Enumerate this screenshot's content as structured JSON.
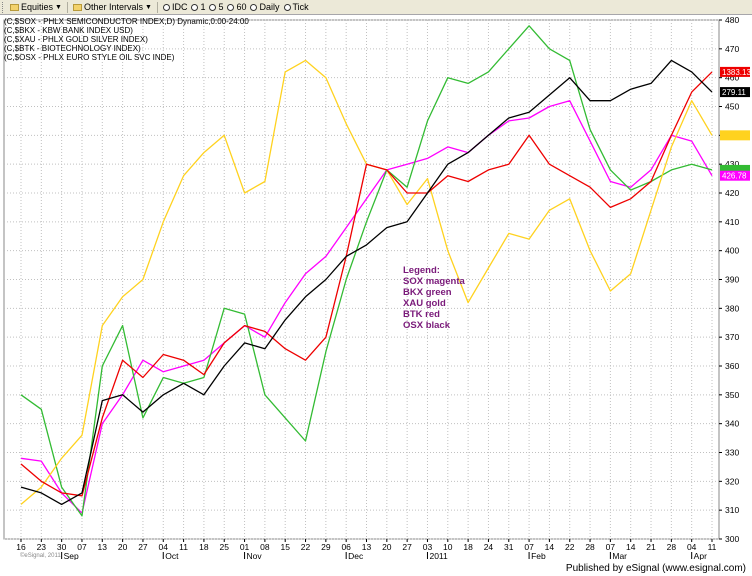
{
  "toolbar": {
    "items": [
      {
        "label": "Equities",
        "icon": "folder-icon"
      },
      {
        "label": "Other Intervals",
        "icon": "folder-icon"
      },
      {
        "label": "IDC",
        "icon": "clock-icon"
      },
      {
        "label": "1",
        "icon": "clock-icon"
      },
      {
        "label": "5",
        "icon": "clock-icon"
      },
      {
        "label": "60",
        "icon": "clock-icon"
      },
      {
        "label": "Daily",
        "icon": "clock-icon"
      },
      {
        "label": "Tick",
        "icon": "clock-icon"
      }
    ]
  },
  "header": {
    "lines": [
      "(C,$SOX - PHLX SEMICONDUCTOR INDEX,D) Dynamic,0:00-24:00",
      "(C,$BKX - KBW BANK INDEX USD)",
      "(C,$XAU - PHLX GOLD SILVER INDEX)",
      "(C,$BTK - BIOTECHNOLOGY INDEX)",
      "(C,$OSX - PHLX EURO STYLE OIL SVC INDE)"
    ]
  },
  "legend": {
    "title": "Legend:",
    "entries": [
      "SOX magenta",
      "BKX green",
      "XAU gold",
      "BTK red",
      "OSX black"
    ]
  },
  "watermark": "©eSignal, 2011",
  "footer": {
    "text": "Published by eSignal (www.esignal.com)"
  },
  "colors": {
    "background": "#ffffff",
    "grid": "#c0c0c0",
    "sox": "#ff00ff",
    "bkx": "#33bb33",
    "xau": "#ffd21f",
    "btk": "#ee0000",
    "osx": "#000000",
    "legend_text": "#7a1a7a"
  },
  "chart_data": {
    "type": "line",
    "grid": true,
    "y_axis": {
      "position": "right",
      "ylim": [
        300,
        480
      ],
      "ticks": [
        300,
        310,
        320,
        330,
        340,
        350,
        360,
        370,
        380,
        390,
        400,
        410,
        420,
        430,
        440,
        450,
        460,
        470,
        480
      ]
    },
    "x_axis": {
      "day_labels": [
        "16",
        "23",
        "30",
        "07",
        "13",
        "20",
        "27",
        "04",
        "11",
        "18",
        "25",
        "01",
        "08",
        "15",
        "22",
        "29",
        "06",
        "13",
        "20",
        "27",
        "03",
        "10",
        "18",
        "24",
        "31",
        "07",
        "14",
        "22",
        "28",
        "07",
        "14",
        "21",
        "28",
        "04",
        "11"
      ],
      "month_labels": [
        {
          "label": "Sep",
          "at_day_index": 2
        },
        {
          "label": "Oct",
          "at_day_index": 7
        },
        {
          "label": "Nov",
          "at_day_index": 11
        },
        {
          "label": "Dec",
          "at_day_index": 16
        },
        {
          "label": "2011",
          "at_day_index": 20
        },
        {
          "label": "Feb",
          "at_day_index": 25
        },
        {
          "label": "Mar",
          "at_day_index": 29
        },
        {
          "label": "Apr",
          "at_day_index": 33
        }
      ]
    },
    "last_value_labels": [
      {
        "series": "BTK",
        "value": "1383.13",
        "color": "#ee0000",
        "text_color": "#ffffff"
      },
      {
        "series": "OSX",
        "value": "279.11",
        "color": "#000000",
        "text_color": "#ffffff"
      },
      {
        "series": "XAU",
        "value": "",
        "color": "#ffd21f",
        "text_color": "#000000"
      },
      {
        "series": "BKX",
        "value": "",
        "color": "#33bb33",
        "text_color": "#ffffff"
      },
      {
        "series": "SOX",
        "value": "426.78",
        "color": "#ff00ff",
        "text_color": "#ffffff"
      }
    ],
    "series": [
      {
        "name": "SOX",
        "color": "#ff00ff",
        "values": [
          328,
          327,
          316,
          309,
          340,
          350,
          362,
          358,
          360,
          362,
          368,
          374,
          370,
          382,
          392,
          398,
          408,
          418,
          428,
          430,
          432,
          436,
          434,
          440,
          445,
          446,
          450,
          452,
          438,
          424,
          422,
          428,
          440,
          438,
          426
        ]
      },
      {
        "name": "BKX",
        "color": "#33bb33",
        "values": [
          350,
          345,
          318,
          308,
          360,
          374,
          342,
          356,
          354,
          356,
          380,
          378,
          350,
          342,
          334,
          365,
          390,
          410,
          428,
          422,
          445,
          460,
          458,
          462,
          470,
          478,
          470,
          466,
          442,
          428,
          421,
          424,
          428,
          430,
          428
        ]
      },
      {
        "name": "XAU",
        "color": "#ffd21f",
        "values": [
          312,
          318,
          328,
          336,
          374,
          384,
          390,
          410,
          426,
          434,
          440,
          420,
          424,
          462,
          466,
          460,
          444,
          430,
          428,
          416,
          425,
          400,
          382,
          394,
          406,
          404,
          414,
          418,
          400,
          386,
          392,
          414,
          436,
          452,
          440
        ]
      },
      {
        "name": "BTK",
        "color": "#ee0000",
        "values": [
          326,
          320,
          316,
          315,
          342,
          362,
          356,
          364,
          362,
          357,
          368,
          374,
          372,
          366,
          362,
          370,
          398,
          430,
          428,
          420,
          420,
          426,
          424,
          428,
          430,
          440,
          430,
          426,
          422,
          415,
          418,
          424,
          440,
          455,
          462
        ]
      },
      {
        "name": "OSX",
        "color": "#000000",
        "values": [
          318,
          316,
          312,
          316,
          348,
          350,
          344,
          350,
          354,
          350,
          360,
          368,
          366,
          376,
          384,
          390,
          398,
          402,
          408,
          410,
          420,
          430,
          434,
          440,
          446,
          448,
          454,
          460,
          452,
          452,
          456,
          458,
          466,
          462,
          455
        ]
      }
    ]
  }
}
